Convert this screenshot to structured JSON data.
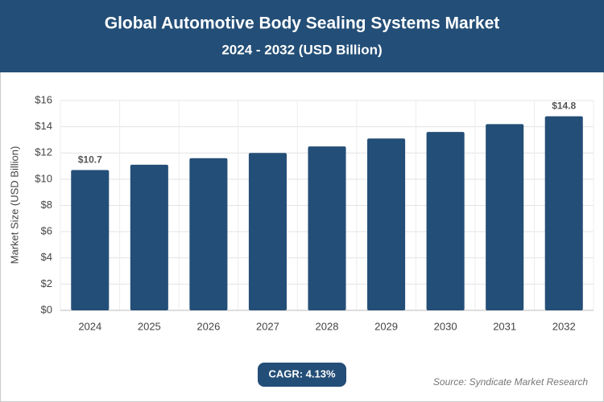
{
  "chart_data": {
    "type": "bar",
    "title": "Global Automotive Body Sealing Systems Market",
    "subtitle": "2024 - 2032 (USD Billion)",
    "y_label": "Market Size (USD Billion)",
    "categories": [
      "2024",
      "2025",
      "2026",
      "2027",
      "2028",
      "2029",
      "2030",
      "2031",
      "2032"
    ],
    "values": [
      10.7,
      11.1,
      11.6,
      12.0,
      12.5,
      13.1,
      13.6,
      14.2,
      14.8
    ],
    "value_labels": [
      "$10.7",
      null,
      null,
      null,
      null,
      null,
      null,
      null,
      "$14.8"
    ],
    "color": "#234e77",
    "ylim": [
      0,
      16
    ],
    "yticks": [
      {
        "value": 0,
        "label": "$0"
      },
      {
        "value": 2,
        "label": "$2"
      },
      {
        "value": 4,
        "label": "$4"
      },
      {
        "value": 6,
        "label": "$6"
      },
      {
        "value": 8,
        "label": "$8"
      },
      {
        "value": 10,
        "label": "$10"
      },
      {
        "value": 12,
        "label": "$12"
      },
      {
        "value": 14,
        "label": "$14"
      },
      {
        "value": 16,
        "label": "$16"
      }
    ],
    "grid": true,
    "cagr": "CAGR: 4.13%",
    "source": "Source: Syndicate Market Research"
  }
}
